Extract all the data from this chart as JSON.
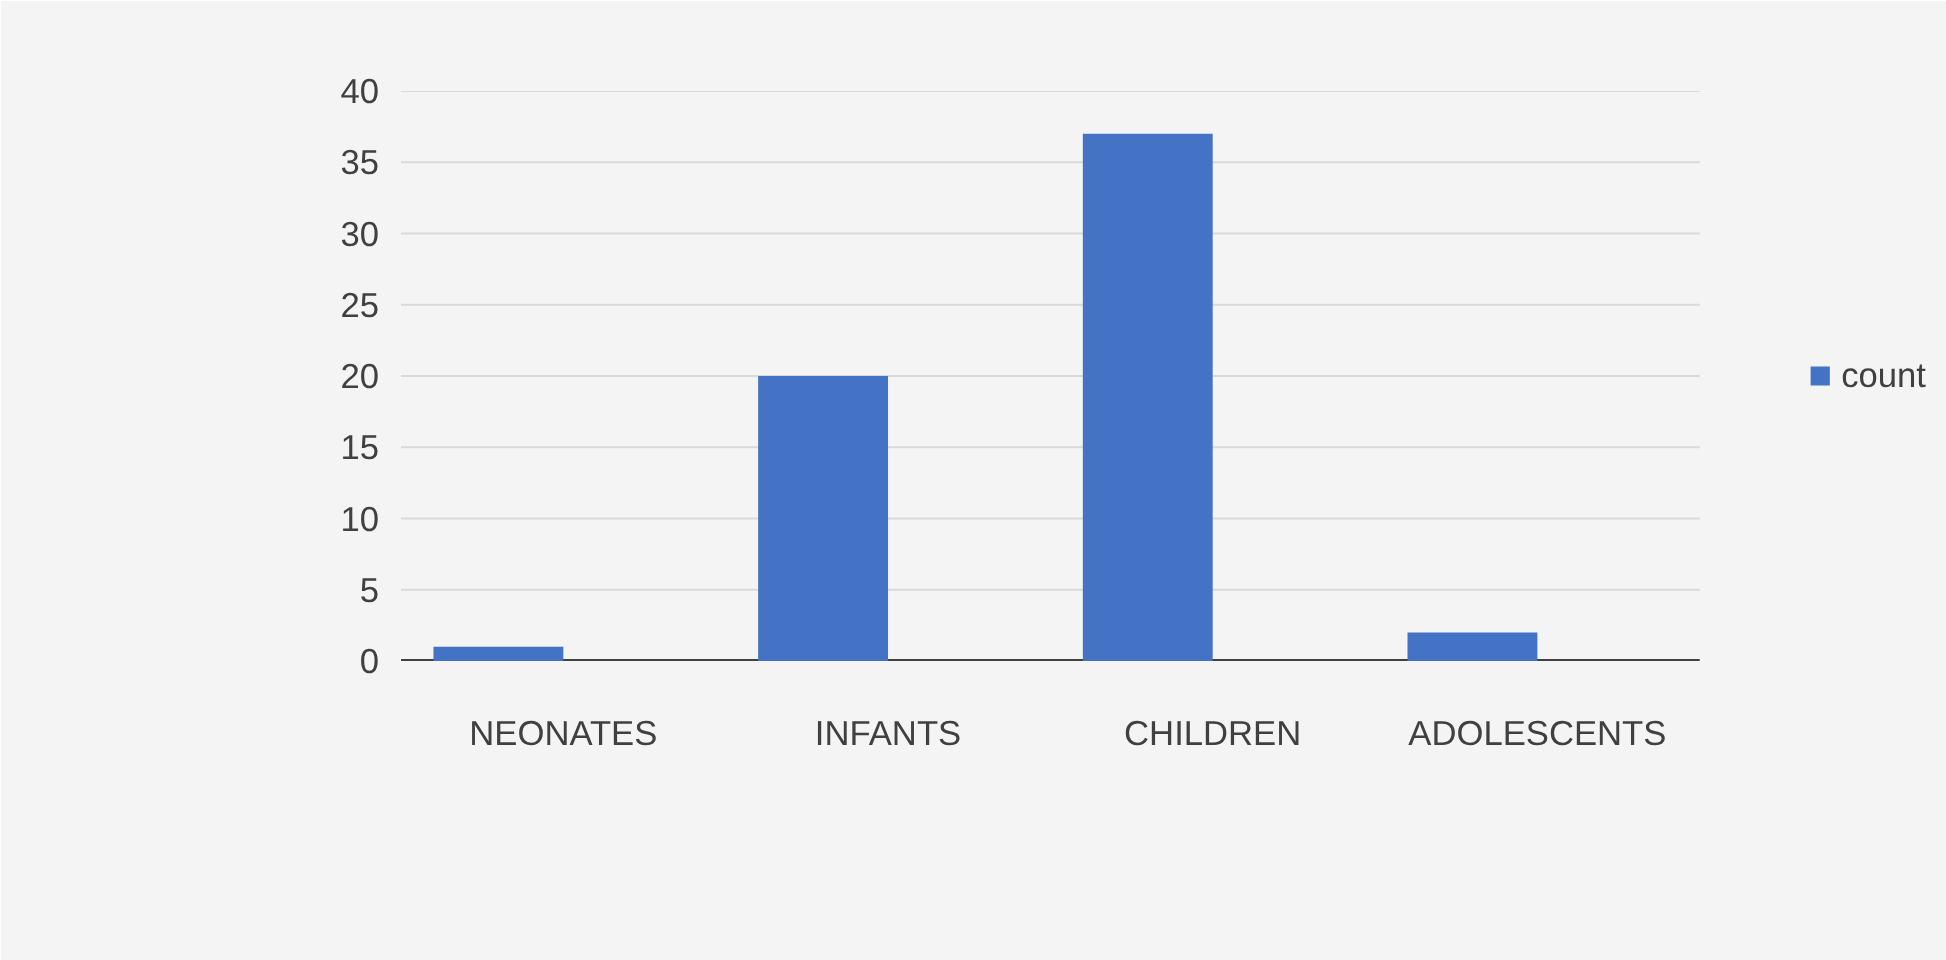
{
  "chart_data": {
    "type": "bar",
    "categories": [
      "NEONATES",
      "INFANTS",
      "CHILDREN",
      "ADOLESCENTS"
    ],
    "series": [
      {
        "name": "count",
        "color": "#4472c4",
        "values": [
          1,
          20,
          37,
          2
        ]
      }
    ],
    "ylim": [
      0,
      40
    ],
    "yticks": [
      0,
      5,
      10,
      15,
      20,
      25,
      30,
      35,
      40
    ],
    "grid": "y",
    "legend": "right"
  }
}
